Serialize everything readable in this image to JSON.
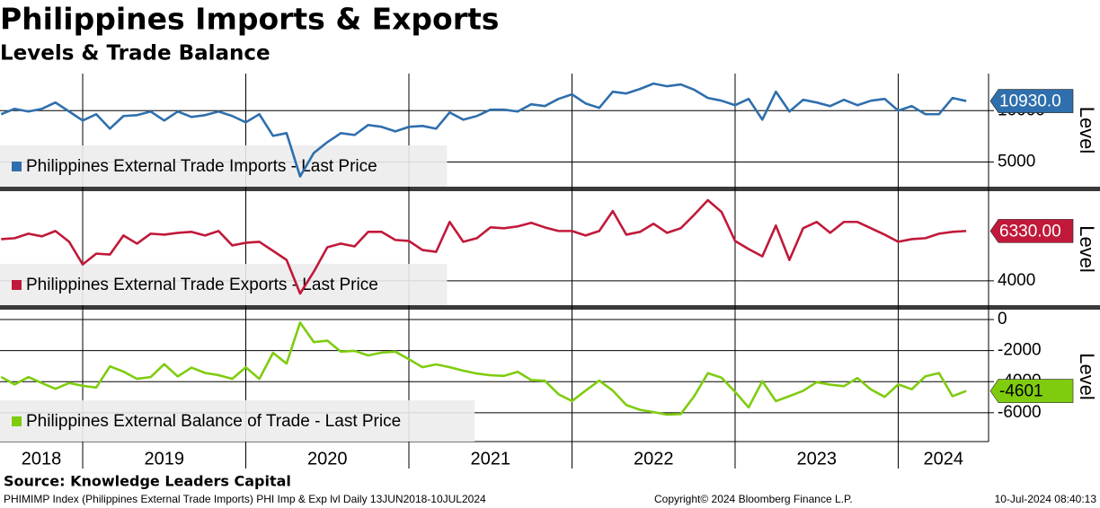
{
  "title": "Philippines Imports & Exports",
  "subtitle": "Levels & Trade Balance",
  "source": "Source: Knowledge Leaders Capital",
  "footer_left": "PHIMIMP Index (Philippines External Trade Imports) PHI Imp & Exp lvl  Daily 13JUN2018-10JUL2024",
  "footer_center": "Copyright© 2024 Bloomberg Finance L.P.",
  "footer_right": "10-Jul-2024 08:40:13",
  "chart_data": {
    "type": "line",
    "x": [
      2018.5,
      2018.583,
      2018.667,
      2018.75,
      2018.833,
      2018.917,
      2019.0,
      2019.083,
      2019.167,
      2019.25,
      2019.333,
      2019.417,
      2019.5,
      2019.583,
      2019.667,
      2019.75,
      2019.833,
      2019.917,
      2020.0,
      2020.083,
      2020.167,
      2020.25,
      2020.333,
      2020.417,
      2020.5,
      2020.583,
      2020.667,
      2020.75,
      2020.833,
      2020.917,
      2021.0,
      2021.083,
      2021.167,
      2021.25,
      2021.333,
      2021.417,
      2021.5,
      2021.583,
      2021.667,
      2021.75,
      2021.833,
      2021.917,
      2022.0,
      2022.083,
      2022.167,
      2022.25,
      2022.333,
      2022.417,
      2022.5,
      2022.583,
      2022.667,
      2022.75,
      2022.833,
      2022.917,
      2023.0,
      2023.083,
      2023.167,
      2023.25,
      2023.333,
      2023.417,
      2023.5,
      2023.583,
      2023.667,
      2023.75,
      2023.833,
      2023.917,
      2024.0,
      2024.083,
      2024.167,
      2024.25,
      2024.333,
      2024.417
    ],
    "xlim": [
      2018.493,
      2024.554
    ],
    "xticks": [
      2019,
      2020,
      2021,
      2022,
      2023,
      2024
    ],
    "x_labels": [
      "2018",
      "2019",
      "2020",
      "2021",
      "2022",
      "2023",
      "2024"
    ],
    "grid": true,
    "panels": [
      {
        "ylabel": "Level",
        "ylim": [
          2600,
          13600
        ],
        "yticks": [
          5000,
          10000
        ],
        "series": [
          {
            "name": "Philippines External Trade Imports - Last Price",
            "color": "#2f6fad",
            "values": [
              9650,
              10175,
              9910,
              10175,
              10790,
              9910,
              9035,
              9650,
              8245,
              9475,
              9560,
              9910,
              9035,
              9910,
              9385,
              9560,
              9910,
              9475,
              8860,
              9650,
              7545,
              7810,
              3600,
              5880,
              6930,
              7810,
              7630,
              8600,
              8420,
              7980,
              8420,
              8510,
              8245,
              9825,
              9120,
              9475,
              10090,
              10090,
              9910,
              10615,
              10440,
              11140,
              11580,
              10700,
              10265,
              11840,
              11665,
              12105,
              12630,
              12370,
              12545,
              12020,
              11230,
              10965,
              10525,
              11140,
              9120,
              11840,
              9910,
              11050,
              10790,
              10440,
              11050,
              10525,
              10965,
              11140,
              10000,
              10440,
              9650,
              9650,
              11230,
              10930
            ],
            "value_labels": [
              null,
              null,
              null,
              null,
              null,
              null,
              null,
              null,
              null,
              null,
              null,
              null,
              null,
              null,
              null,
              null,
              null,
              null,
              null,
              null,
              null,
              null,
              null,
              null,
              null,
              null,
              null,
              null,
              null,
              null,
              null,
              null,
              null,
              null,
              null,
              null,
              null,
              null,
              null,
              null,
              null,
              null,
              null,
              null,
              null,
              null,
              null,
              null,
              null,
              null,
              null,
              null,
              null,
              null,
              null,
              null,
              null,
              null,
              null,
              null,
              null,
              null,
              null,
              null,
              null,
              null,
              null,
              null,
              null,
              null,
              null,
              "10930.0"
            ]
          }
        ]
      },
      {
        "ylabel": "Level",
        "ylim": [
          2860,
          8110
        ],
        "yticks": [
          4000
        ],
        "series": [
          {
            "name": "Philippines External Trade Exports - Last Price",
            "color": "#c0193a",
            "values": [
              5950,
              5995,
              6205,
              6080,
              6330,
              5825,
              4765,
              5270,
              5230,
              6120,
              5740,
              6205,
              6160,
              6245,
              6290,
              6120,
              6330,
              5655,
              5780,
              5825,
              5400,
              4975,
              3405,
              4425,
              5570,
              5740,
              5610,
              6290,
              6290,
              5910,
              5865,
              5440,
              5355,
              6755,
              5825,
              5995,
              6500,
              6460,
              6545,
              6715,
              6500,
              6330,
              6330,
              6120,
              6330,
              7265,
              6160,
              6290,
              6670,
              6245,
              6460,
              7095,
              7775,
              7220,
              5865,
              5485,
              5145,
              6585,
              4975,
              6460,
              6755,
              6245,
              6755,
              6755,
              6460,
              6160,
              5825,
              5950,
              5995,
              6205,
              6290,
              6330
            ],
            "value_labels": [
              null,
              null,
              null,
              null,
              null,
              null,
              null,
              null,
              null,
              null,
              null,
              null,
              null,
              null,
              null,
              null,
              null,
              null,
              null,
              null,
              null,
              null,
              null,
              null,
              null,
              null,
              null,
              null,
              null,
              null,
              null,
              null,
              null,
              null,
              null,
              null,
              null,
              null,
              null,
              null,
              null,
              null,
              null,
              null,
              null,
              null,
              null,
              null,
              null,
              null,
              null,
              null,
              null,
              null,
              null,
              null,
              null,
              null,
              null,
              null,
              null,
              null,
              null,
              null,
              null,
              null,
              null,
              null,
              null,
              null,
              null,
              "6330.00"
            ]
          }
        ]
      },
      {
        "ylabel": "Level",
        "ylim": [
          -7860,
          520
        ],
        "yticks": [
          0,
          -2000,
          -4000,
          -6000
        ],
        "series": [
          {
            "name": "Philippines External Balance of Trade - Last Price",
            "color": "#7fcc0f",
            "values": [
              -3700,
              -4180,
              -3705,
              -4095,
              -4460,
              -4085,
              -4270,
              -4380,
              -3015,
              -3355,
              -3820,
              -3705,
              -2875,
              -3665,
              -3095,
              -3440,
              -3580,
              -3820,
              -3080,
              -3825,
              -2145,
              -2835,
              -195,
              -1455,
              -1360,
              -2070,
              -2020,
              -2310,
              -2130,
              -2070,
              -2555,
              -3070,
              -2890,
              -3070,
              -3295,
              -3480,
              -3590,
              -3630,
              -3365,
              -3900,
              -3940,
              -4810,
              -5250,
              -4580,
              -3935,
              -4575,
              -5505,
              -5815,
              -5960,
              -6125,
              -6085,
              -4925,
              -3455,
              -3745,
              -4660,
              -5655,
              -3975,
              -5255,
              -4935,
              -4590,
              -4035,
              -4195,
              -4295,
              -3770,
              -4505,
              -4980,
              -4175,
              -4490,
              -3655,
              -3445,
              -4940,
              -4601
            ]
          }
        ]
      }
    ]
  }
}
